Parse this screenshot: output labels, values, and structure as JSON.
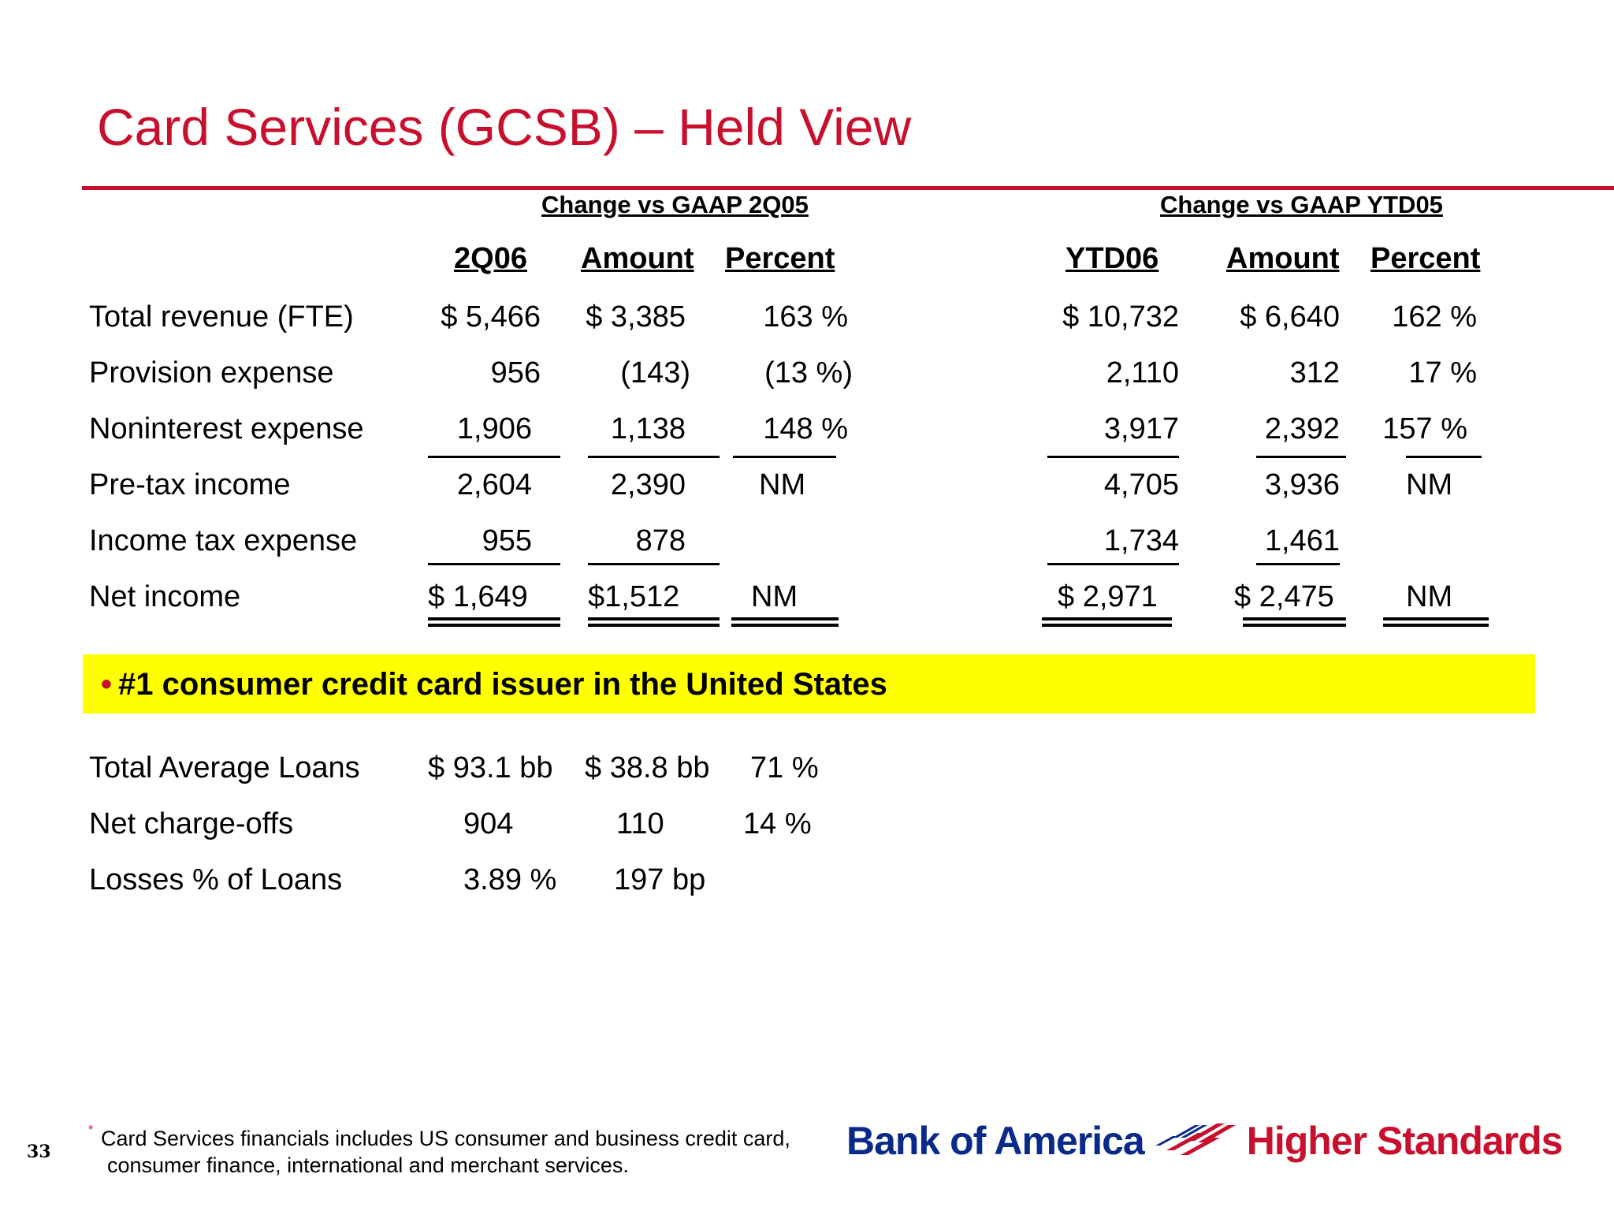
{
  "slide": {
    "title": "Card Services (GCSB) – Held View",
    "page_number": "33"
  },
  "table": {
    "group_headers": [
      "Change vs GAAP 2Q05",
      "Change vs GAAP YTD05"
    ],
    "column_headers": [
      "2Q06",
      "Amount",
      "Percent",
      "YTD06",
      "Amount",
      "Percent"
    ],
    "rows": [
      {
        "label": "Total revenue (FTE)",
        "values": [
          "$ 5,466",
          "$ 3,385",
          "163 %",
          "$ 10,732",
          "$  6,640",
          "162 %"
        ]
      },
      {
        "label": "Provision expense",
        "values": [
          "956",
          "(143)",
          "(13 %)",
          "2,110",
          "312",
          "17 %"
        ]
      },
      {
        "label": "Noninterest expense",
        "values": [
          "1,906",
          "1,138",
          "148 %",
          "3,917",
          "2,392",
          "157 %"
        ]
      },
      {
        "label": "Pre-tax income",
        "values": [
          "2,604",
          "2,390",
          "NM",
          "4,705",
          "3,936",
          "NM"
        ]
      },
      {
        "label": "Income tax expense",
        "values": [
          "955",
          "878",
          "",
          "1,734",
          "1,461",
          ""
        ]
      },
      {
        "label": "Net income",
        "values": [
          "$ 1,649",
          "$1,512",
          "NM",
          "$   2,971",
          "$ 2,475",
          "NM"
        ]
      }
    ]
  },
  "highlight": {
    "bullet": "•",
    "text": "#1 consumer credit card issuer in the United States"
  },
  "loans": {
    "rows": [
      {
        "label": "Total Average Loans",
        "values": [
          "$ 93.1 bb",
          "$ 38.8 bb",
          "71 %"
        ]
      },
      {
        "label": "Net charge-offs",
        "values": [
          "904",
          "110",
          "14 %"
        ]
      },
      {
        "label": "Losses % of Loans",
        "values": [
          "3.89 %",
          "197 bp",
          ""
        ]
      }
    ]
  },
  "footnote": {
    "marker": "*",
    "line1": "Card Services financials includes US consumer and business credit card,",
    "line2": "consumer finance, international and merchant services."
  },
  "logo": {
    "bank_name": "Bank of America",
    "tagline": "Higher Standards",
    "colors": {
      "blue": "#0a2a8a",
      "red": "#c8102e"
    }
  }
}
